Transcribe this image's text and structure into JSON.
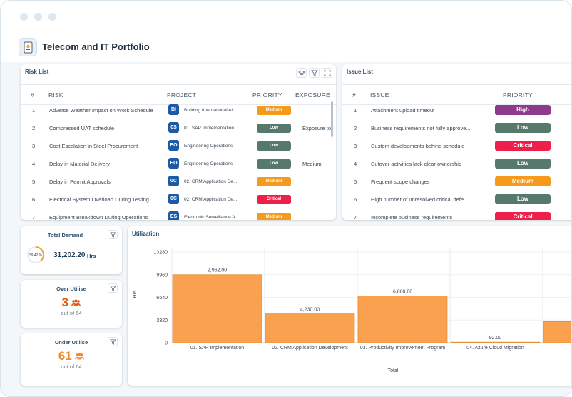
{
  "app": {
    "title": "Telecom and IT Portfolio"
  },
  "risk_list": {
    "title": "Risk List",
    "columns": [
      "#",
      "RISK",
      "PROJECT",
      "PRIORITY",
      "EXPOSURE"
    ],
    "rows": [
      {
        "num": "1",
        "risk": "Adverse Weather Impact on Work Schedule",
        "badge": "BI",
        "project": "Building International Air...",
        "priority": "Medium",
        "color": "#f59a1b",
        "exposure": ""
      },
      {
        "num": "2",
        "risk": "Compressed UAT schedule",
        "badge": "0S",
        "project": "01. SAP Implementation",
        "priority": "Low",
        "color": "#57796b",
        "exposure": "Exposure to"
      },
      {
        "num": "3",
        "risk": "Cost Escalation in Steel Procurement",
        "badge": "EO",
        "project": "Engineering Operations",
        "priority": "Low",
        "color": "#57796b",
        "exposure": ""
      },
      {
        "num": "4",
        "risk": "Delay in Material Delivery",
        "badge": "EO",
        "project": "Engineering Operations",
        "priority": "Low",
        "color": "#57796b",
        "exposure": "Medium"
      },
      {
        "num": "5",
        "risk": "Delay in Permit Approvals",
        "badge": "0C",
        "project": "02. CRM Application De...",
        "priority": "Medium",
        "color": "#f59a1b",
        "exposure": ""
      },
      {
        "num": "6",
        "risk": "Electrical System Overload During Testing",
        "badge": "0C",
        "project": "02. CRM Application De...",
        "priority": "Critical",
        "color": "#ee1f4b",
        "exposure": ""
      },
      {
        "num": "7",
        "risk": "Equipment Breakdown During Operations",
        "badge": "ES",
        "project": "Electronic Surveillance A...",
        "priority": "Medium",
        "color": "#f59a1b",
        "exposure": ""
      }
    ]
  },
  "issue_list": {
    "title": "Issue List",
    "columns": [
      "#",
      "ISSUE",
      "PRIORITY"
    ],
    "rows": [
      {
        "num": "1",
        "issue": "Attachment upload timeout",
        "priority": "High",
        "color": "#8d3a8a"
      },
      {
        "num": "2",
        "issue": "Business requirements not fully approve...",
        "priority": "Low",
        "color": "#57796b"
      },
      {
        "num": "3",
        "issue": "Custom developments behind schedule",
        "priority": "Critical",
        "color": "#ee1f4b"
      },
      {
        "num": "4",
        "issue": "Cutover activities lack clear ownership",
        "priority": "Low",
        "color": "#57796b"
      },
      {
        "num": "5",
        "issue": "Frequent scope changes",
        "priority": "Medium",
        "color": "#f59a1b"
      },
      {
        "num": "6",
        "issue": "High number of unresolved critical defe...",
        "priority": "Low",
        "color": "#57796b"
      },
      {
        "num": "7",
        "issue": "Incomplete business requirements",
        "priority": "Critical",
        "color": "#ee1f4b"
      }
    ]
  },
  "total_demand": {
    "title": "Total Demand",
    "percent": "39.42 %",
    "percent_value": 39.42,
    "value": "31,202.20",
    "unit": "Hrs"
  },
  "over_utilise": {
    "title": "Over Utilise",
    "value": "3",
    "sub": "out of 64",
    "color": "#e05a0c"
  },
  "under_utilise": {
    "title": "Under Utilise",
    "value": "61",
    "sub": "out of 64",
    "color": "#f08a2c"
  },
  "utilization": {
    "title": "Utilization"
  },
  "chart_data": {
    "type": "bar",
    "title": "",
    "xlabel": "Total",
    "ylabel": "Hrs",
    "categories": [
      "01. SAP Implementation",
      "02. CRM Application Development",
      "03. Productivity Improvement Program",
      "04. Azure Cloud Migration",
      ""
    ],
    "values": [
      9962,
      4230,
      6860,
      92,
      3100
    ],
    "value_labels": [
      "9,962.00",
      "4,230.00",
      "6,860.00",
      "92.00",
      ""
    ],
    "y_ticks": [
      "0",
      "3320",
      "6640",
      "9960",
      "13280"
    ],
    "ylim": [
      0,
      13280
    ],
    "color": "#f9a14e",
    "grid": true
  }
}
